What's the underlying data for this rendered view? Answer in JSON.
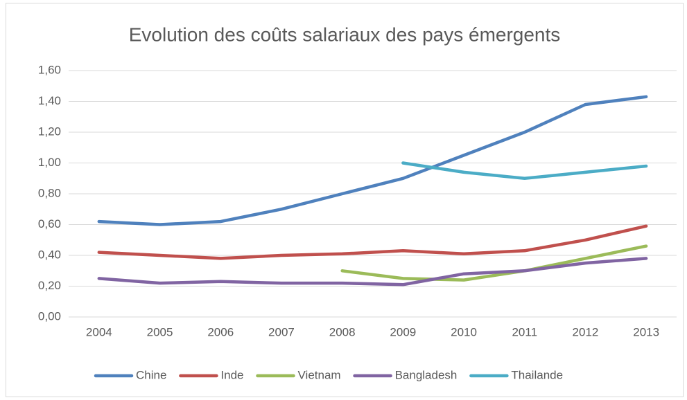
{
  "chart_data": {
    "type": "line",
    "title": "Evolution des coûts salariaux des pays émergents",
    "categories": [
      "2004",
      "2005",
      "2006",
      "2007",
      "2008",
      "2009",
      "2010",
      "2011",
      "2012",
      "2013"
    ],
    "series": [
      {
        "name": "Chine",
        "color": "#4f81bd",
        "values": [
          0.62,
          0.6,
          0.62,
          0.7,
          0.8,
          0.9,
          1.05,
          1.2,
          1.38,
          1.43
        ]
      },
      {
        "name": "Inde",
        "color": "#c0504d",
        "values": [
          0.42,
          0.4,
          0.38,
          0.4,
          0.41,
          0.43,
          0.41,
          0.43,
          0.5,
          0.59
        ]
      },
      {
        "name": "Vietnam",
        "color": "#9bbb59",
        "values": [
          null,
          null,
          null,
          null,
          0.3,
          0.25,
          0.24,
          0.3,
          0.38,
          0.46
        ]
      },
      {
        "name": "Bangladesh",
        "color": "#8064a2",
        "values": [
          0.25,
          0.22,
          0.23,
          0.22,
          0.22,
          0.21,
          0.28,
          0.3,
          0.35,
          0.38
        ]
      },
      {
        "name": "Thailande",
        "color": "#4bacc6",
        "values": [
          null,
          null,
          null,
          null,
          null,
          1.0,
          0.94,
          0.9,
          0.94,
          0.98
        ]
      }
    ],
    "ylim": [
      0,
      1.6
    ],
    "yticks": [
      {
        "value": 0,
        "label": "0,00"
      },
      {
        "value": 0.2,
        "label": "0,20"
      },
      {
        "value": 0.4,
        "label": "0,40"
      },
      {
        "value": 0.6,
        "label": "0,60"
      },
      {
        "value": 0.8,
        "label": "0,80"
      },
      {
        "value": 1.0,
        "label": "1,00"
      },
      {
        "value": 1.2,
        "label": "1,20"
      },
      {
        "value": 1.4,
        "label": "1,40"
      },
      {
        "value": 1.6,
        "label": "1,60"
      }
    ],
    "grid": true,
    "legend": "bottom"
  }
}
